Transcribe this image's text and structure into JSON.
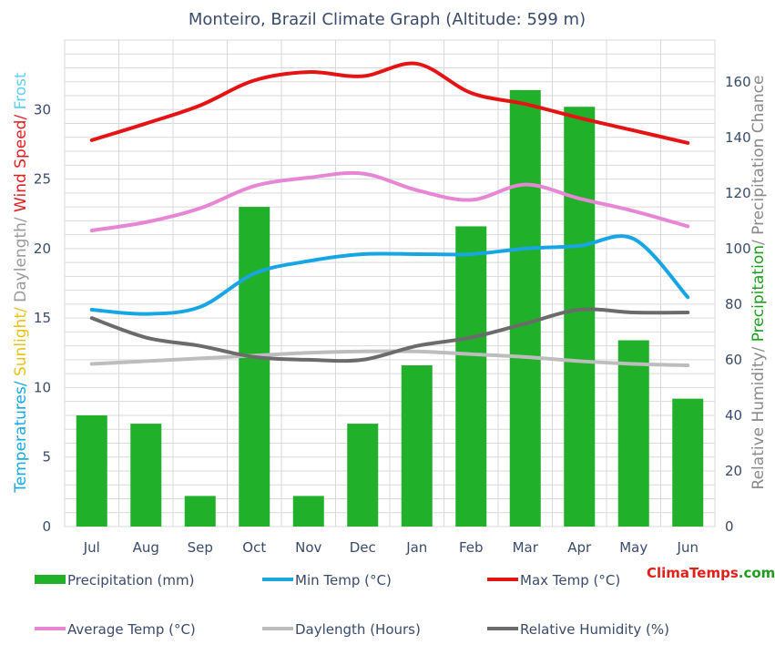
{
  "chart_data": {
    "type": "bar+line",
    "title": "Monteiro, Brazil Climate Graph (Altitude: 599 m)",
    "categories": [
      "Jul",
      "Aug",
      "Sep",
      "Oct",
      "Nov",
      "Dec",
      "Jan",
      "Feb",
      "Mar",
      "Apr",
      "May",
      "Jun"
    ],
    "left_axis": {
      "label_parts": [
        {
          "text": "Temperatures",
          "color": "#1aa7e0"
        },
        {
          "text": "/ ",
          "color": "#1aa7e0"
        },
        {
          "text": "Sunlight",
          "color": "#e8c21a"
        },
        {
          "text": "/ ",
          "color": "#e8c21a"
        },
        {
          "text": "Daylength",
          "color": "#9a9a9a"
        },
        {
          "text": "/ ",
          "color": "#9a9a9a"
        },
        {
          "text": "Wind Speed",
          "color": "#e02020"
        },
        {
          "text": "/ ",
          "color": "#e02020"
        },
        {
          "text": "Frost",
          "color": "#5fd0f0"
        }
      ],
      "ylim": [
        0,
        35
      ],
      "ticks": [
        0,
        5,
        10,
        15,
        20,
        25,
        30
      ]
    },
    "right_axis": {
      "label_parts": [
        {
          "text": "Relative Humidity",
          "color": "#8a8a8a"
        },
        {
          "text": "/ ",
          "color": "#8a8a8a"
        },
        {
          "text": "Precipitation",
          "color": "#1e9e1e"
        },
        {
          "text": "/ ",
          "color": "#8a8a8a"
        },
        {
          "text": "Precipitation Chance",
          "color": "#8a8a8a"
        }
      ],
      "ylim": [
        0,
        175
      ],
      "ticks": [
        0,
        20,
        40,
        60,
        80,
        100,
        120,
        140,
        160
      ]
    },
    "bars": {
      "name": "Precipitation (mm)",
      "color": "#20b02a",
      "values": [
        40,
        37,
        11,
        115,
        11,
        37,
        58,
        108,
        157,
        151,
        67,
        46
      ]
    },
    "series": [
      {
        "name": "Min Temp (°C)",
        "color": "#17a6e3",
        "axis": "left",
        "values": [
          15.6,
          15.3,
          15.8,
          18.2,
          19.1,
          19.6,
          19.6,
          19.6,
          20.0,
          20.2,
          20.7,
          16.5
        ]
      },
      {
        "name": "Max Temp (°C)",
        "color": "#e51414",
        "axis": "left",
        "values": [
          27.8,
          29.0,
          30.3,
          32.1,
          32.7,
          32.4,
          33.3,
          31.2,
          30.4,
          29.4,
          28.5,
          27.6
        ]
      },
      {
        "name": "Average Temp (°C)",
        "color": "#e686d4",
        "axis": "left",
        "values": [
          21.3,
          21.9,
          22.9,
          24.5,
          25.1,
          25.4,
          24.2,
          23.5,
          24.6,
          23.6,
          22.7,
          21.6
        ]
      },
      {
        "name": "Daylength (Hours)",
        "color": "#bdbdbd",
        "axis": "left",
        "values": [
          11.7,
          11.9,
          12.1,
          12.3,
          12.5,
          12.6,
          12.6,
          12.4,
          12.2,
          11.9,
          11.7,
          11.6
        ]
      },
      {
        "name": "Relative Humidity (%)",
        "color": "#6b6b6b",
        "axis": "right",
        "values": [
          75,
          68,
          65,
          61,
          60,
          60,
          65,
          68,
          73,
          78,
          77,
          77
        ]
      }
    ],
    "grid": true,
    "legend_position": "bottom",
    "brand": {
      "part1": "Clima",
      "part2": "Temps",
      "part3": ".com"
    }
  }
}
